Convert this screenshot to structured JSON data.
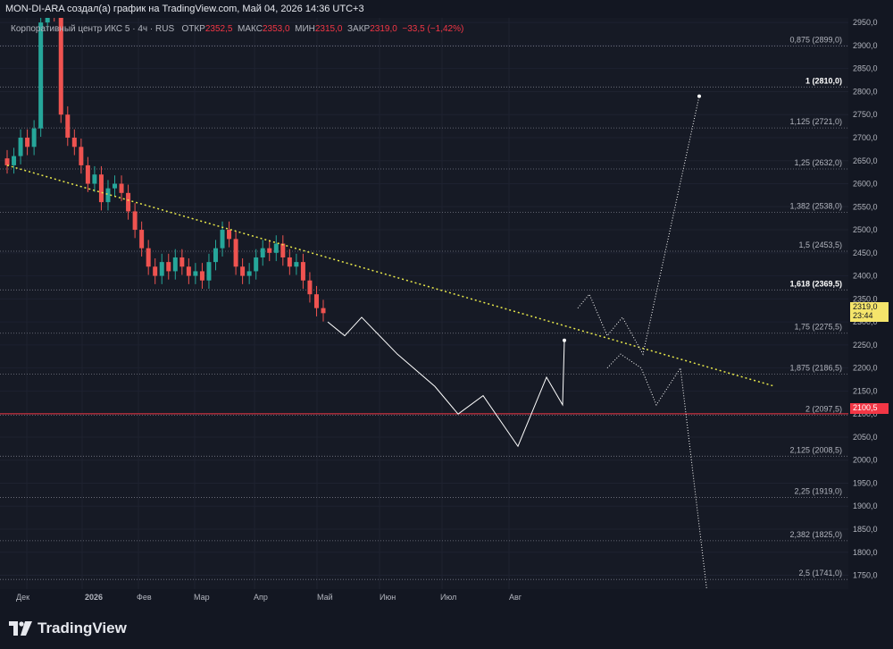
{
  "header": {
    "title": "MON-DI-ARA создал(а) график на TradingView.com, Май 04, 2026 14:36 UTC+3"
  },
  "info": {
    "instrument": "Корпоративный центр ИКС 5 · 4ч · RUS",
    "open_label": "ОТКР",
    "open_value": "2352,5",
    "high_label": "МАКС",
    "high_value": "2353,0",
    "low_label": "МИН",
    "low_value": "2315,0",
    "close_label": "ЗАКР",
    "close_value": "2319,0",
    "change": "−33,5 (−1,42%)"
  },
  "chart_data": {
    "type": "candlestick",
    "title": "Корпоративный центр ИКС 5 · 4ч · RUS",
    "y_ticks": [
      "2950,0",
      "2900,0",
      "2850,0",
      "2800,0",
      "2750,0",
      "2700,0",
      "2650,0",
      "2600,0",
      "2550,0",
      "2500,0",
      "2450,0",
      "2400,0",
      "2350,0",
      "2300,0",
      "2250,0",
      "2200,0",
      "2150,0",
      "2100,0",
      "2050,0",
      "2000,0",
      "1950,0",
      "1900,0",
      "1850,0",
      "1800,0",
      "1750,0"
    ],
    "x_ticks": [
      "Дек",
      "2026",
      "Фев",
      "Мар",
      "Апр",
      "Май",
      "Июн",
      "Июл",
      "Авг"
    ],
    "ylim": [
      1720,
      2960
    ],
    "current_price": "2319,0",
    "current_time": "23:44",
    "reference_price": "2100,5",
    "fib_levels": [
      {
        "label": "0,875 (2899,0)",
        "price": 2899.0
      },
      {
        "label": "1 (2810,0)",
        "price": 2810.0
      },
      {
        "label": "1,125 (2721,0)",
        "price": 2721.0
      },
      {
        "label": "1,25 (2632,0)",
        "price": 2632.0
      },
      {
        "label": "1,382 (2538,0)",
        "price": 2538.0
      },
      {
        "label": "1,5 (2453,5)",
        "price": 2453.5
      },
      {
        "label": "1,618 (2369,5)",
        "price": 2369.5
      },
      {
        "label": "1,75 (2275,5)",
        "price": 2275.5
      },
      {
        "label": "1,875 (2186,5)",
        "price": 2186.5
      },
      {
        "label": "2 (2097,5)",
        "price": 2097.5
      },
      {
        "label": "2,125 (2008,5)",
        "price": 2008.5
      },
      {
        "label": "2,25 (1919,0)",
        "price": 1919.0
      },
      {
        "label": "2,382 (1825,0)",
        "price": 1825.0
      },
      {
        "label": "2,5 (1741,0)",
        "price": 1741.0
      }
    ],
    "trendline": {
      "from_price": 2640,
      "to_price": 2160
    },
    "price_path": [
      2640,
      2660,
      2700,
      2680,
      2720,
      2950,
      2990,
      2970,
      2750,
      2700,
      2680,
      2640,
      2600,
      2620,
      2560,
      2590,
      2600,
      2580,
      2540,
      2500,
      2460,
      2420,
      2400,
      2430,
      2410,
      2440,
      2420,
      2400,
      2410,
      2390,
      2430,
      2460,
      2500,
      2480,
      2420,
      2400,
      2410,
      2440,
      2460,
      2450,
      2470,
      2440,
      2420,
      2430,
      2390,
      2360,
      2330,
      2319
    ],
    "forecast_main": [
      2300,
      2270,
      2310,
      2230,
      2160,
      2100,
      2140,
      2030,
      2180,
      2120,
      2260
    ],
    "forecast_up": [
      2330,
      2360,
      2270,
      2310,
      2230,
      2790
    ],
    "forecast_down": [
      2200,
      2230,
      2200,
      2120,
      2200,
      1710
    ],
    "colors": {
      "up": "#26a69a",
      "down": "#ef5350",
      "trend": "#e8e84a",
      "fib": "#787b86",
      "ref": "#f23645"
    }
  },
  "footer": {
    "brand": "TradingView"
  }
}
